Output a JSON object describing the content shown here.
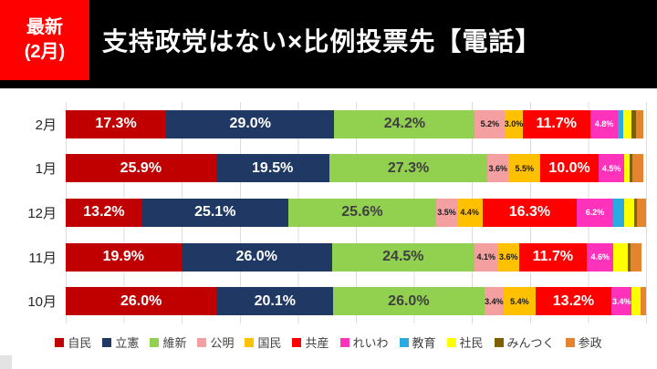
{
  "header": {
    "badge_top": "最新",
    "badge_bottom": "(2月)",
    "title": "支持政党はない×比例投票先【電話】"
  },
  "chart_data": {
    "type": "bar",
    "variant": "horizontal-stacked",
    "unit": "%",
    "xlim": [
      0,
      100
    ],
    "grid": {
      "vertical": true,
      "interval_pct": 10
    },
    "legend_position": "bottom",
    "label_threshold_pct": 3,
    "big_label_threshold_pct": 10,
    "categories": [
      "2月",
      "1月",
      "12月",
      "11月",
      "10月"
    ],
    "series": [
      {
        "name": "自民",
        "color": "#C00000",
        "label_color": "#FFFFFF",
        "values": [
          17.3,
          25.9,
          13.2,
          19.9,
          26.0
        ]
      },
      {
        "name": "立憲",
        "color": "#1F3864",
        "label_color": "#FFFFFF",
        "values": [
          29.0,
          19.5,
          25.1,
          26.0,
          20.1
        ]
      },
      {
        "name": "維新",
        "color": "#92D050",
        "label_color": "#404040",
        "values": [
          24.2,
          27.3,
          25.6,
          24.5,
          26.0
        ]
      },
      {
        "name": "公明",
        "color": "#F4A0A0",
        "label_color": "#1a1a1a",
        "values": [
          5.2,
          3.6,
          3.5,
          4.1,
          3.4
        ]
      },
      {
        "name": "国民",
        "color": "#FFC000",
        "label_color": "#1a1a1a",
        "values": [
          3.0,
          5.5,
          4.4,
          3.6,
          5.4
        ]
      },
      {
        "name": "共産",
        "color": "#FF0000",
        "label_color": "#FFFFFF",
        "values": [
          11.7,
          10.0,
          16.3,
          11.7,
          13.2
        ]
      },
      {
        "name": "れいわ",
        "color": "#FF33BB",
        "label_color": "#FFFFFF",
        "values": [
          4.8,
          4.5,
          6.2,
          4.6,
          3.4
        ]
      },
      {
        "name": "教育",
        "color": "#29ABE2",
        "label_color": "#FFFFFF",
        "values": [
          0.8,
          0,
          2.0,
          0,
          0
        ]
      },
      {
        "name": "社民",
        "color": "#FFFF00",
        "label_color": "#1a1a1a",
        "values": [
          1.5,
          0.8,
          1.7,
          2.4,
          1.5
        ]
      },
      {
        "name": "みんつく",
        "color": "#7F6000",
        "label_color": "#FFFFFF",
        "values": [
          0.8,
          0.6,
          0.4,
          0.6,
          0
        ]
      },
      {
        "name": "参政",
        "color": "#E5842F",
        "label_color": "#FFFFFF",
        "values": [
          1.2,
          1.9,
          1.6,
          1.9,
          1.0
        ]
      }
    ]
  }
}
